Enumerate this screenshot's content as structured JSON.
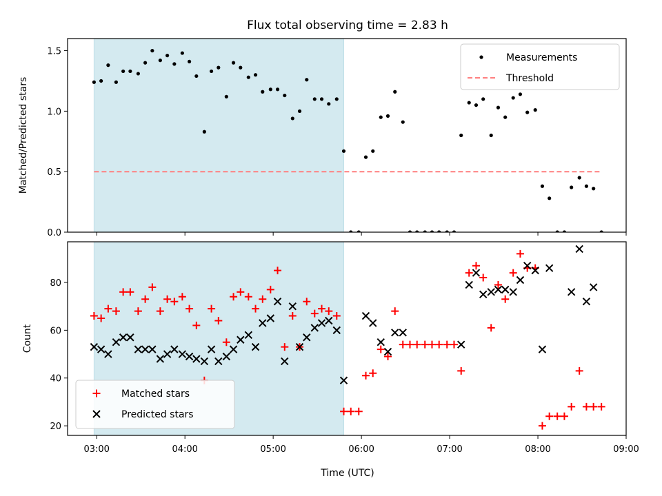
{
  "chart_data": {
    "type": "scatter",
    "title": "Flux total observing time = 2.83 h",
    "xlabel": "Time (UTC)",
    "x_ticks": [
      "03:00",
      "04:00",
      "05:00",
      "06:00",
      "07:00",
      "08:00",
      "09:00"
    ],
    "x_range_hours": [
      2.67,
      9.0
    ],
    "shaded_interval_hours": [
      2.97,
      5.8
    ],
    "shade_color": "#d4eaf0",
    "panels": [
      {
        "ylabel": "Matched/Predicted stars",
        "ylim": [
          0,
          1.6
        ],
        "y_ticks": [
          "0.0",
          "0.5",
          "1.0",
          "1.5"
        ],
        "legend": {
          "placement": "top-right",
          "entries": [
            "Measurements",
            "Threshold"
          ]
        },
        "threshold": {
          "name": "Threshold",
          "value": 0.5,
          "x_range": [
            2.97,
            8.7
          ],
          "color": "#ff7f7f"
        },
        "series": [
          {
            "name": "Measurements",
            "marker": "dot",
            "color": "#000000",
            "points": [
              [
                2.97,
                1.24
              ],
              [
                3.05,
                1.25
              ],
              [
                3.13,
                1.38
              ],
              [
                3.22,
                1.24
              ],
              [
                3.3,
                1.33
              ],
              [
                3.38,
                1.33
              ],
              [
                3.47,
                1.31
              ],
              [
                3.55,
                1.4
              ],
              [
                3.63,
                1.5
              ],
              [
                3.72,
                1.42
              ],
              [
                3.8,
                1.46
              ],
              [
                3.88,
                1.39
              ],
              [
                3.97,
                1.48
              ],
              [
                4.05,
                1.41
              ],
              [
                4.13,
                1.29
              ],
              [
                4.22,
                0.83
              ],
              [
                4.3,
                1.33
              ],
              [
                4.38,
                1.36
              ],
              [
                4.47,
                1.12
              ],
              [
                4.55,
                1.4
              ],
              [
                4.63,
                1.36
              ],
              [
                4.72,
                1.28
              ],
              [
                4.8,
                1.3
              ],
              [
                4.88,
                1.16
              ],
              [
                4.97,
                1.18
              ],
              [
                5.05,
                1.18
              ],
              [
                5.13,
                1.13
              ],
              [
                5.22,
                0.94
              ],
              [
                5.3,
                1.0
              ],
              [
                5.38,
                1.26
              ],
              [
                5.47,
                1.1
              ],
              [
                5.55,
                1.1
              ],
              [
                5.63,
                1.06
              ],
              [
                5.72,
                1.1
              ],
              [
                5.8,
                0.67
              ],
              [
                5.88,
                0.0
              ],
              [
                5.97,
                0.0
              ],
              [
                6.05,
                0.62
              ],
              [
                6.13,
                0.67
              ],
              [
                6.22,
                0.95
              ],
              [
                6.3,
                0.96
              ],
              [
                6.38,
                1.16
              ],
              [
                6.47,
                0.91
              ],
              [
                6.55,
                0.0
              ],
              [
                6.63,
                0.0
              ],
              [
                6.72,
                0.0
              ],
              [
                6.8,
                0.0
              ],
              [
                6.88,
                0.0
              ],
              [
                6.97,
                0.0
              ],
              [
                7.05,
                0.0
              ],
              [
                7.13,
                0.8
              ],
              [
                7.22,
                1.07
              ],
              [
                7.3,
                1.05
              ],
              [
                7.38,
                1.1
              ],
              [
                7.47,
                0.8
              ],
              [
                7.55,
                1.03
              ],
              [
                7.63,
                0.95
              ],
              [
                7.72,
                1.11
              ],
              [
                7.8,
                1.14
              ],
              [
                7.88,
                0.99
              ],
              [
                7.97,
                1.01
              ],
              [
                8.05,
                0.38
              ],
              [
                8.13,
                0.28
              ],
              [
                8.22,
                0.0
              ],
              [
                8.3,
                0.0
              ],
              [
                8.38,
                0.37
              ],
              [
                8.47,
                0.45
              ],
              [
                8.55,
                0.38
              ],
              [
                8.63,
                0.36
              ],
              [
                8.72,
                0.0
              ]
            ]
          }
        ]
      },
      {
        "ylabel": "Count",
        "ylim": [
          16,
          97
        ],
        "y_ticks": [
          "20",
          "40",
          "60",
          "80"
        ],
        "legend": {
          "placement": "bottom-left",
          "entries": [
            "Matched stars",
            "Predicted stars"
          ]
        },
        "series": [
          {
            "name": "Matched stars",
            "marker": "plus",
            "color": "#ff0000",
            "points": [
              [
                2.97,
                66
              ],
              [
                3.05,
                65
              ],
              [
                3.13,
                69
              ],
              [
                3.22,
                68
              ],
              [
                3.3,
                76
              ],
              [
                3.38,
                76
              ],
              [
                3.47,
                68
              ],
              [
                3.55,
                73
              ],
              [
                3.63,
                78
              ],
              [
                3.72,
                68
              ],
              [
                3.8,
                73
              ],
              [
                3.88,
                72
              ],
              [
                3.97,
                74
              ],
              [
                4.05,
                69
              ],
              [
                4.13,
                62
              ],
              [
                4.22,
                39
              ],
              [
                4.3,
                69
              ],
              [
                4.38,
                64
              ],
              [
                4.47,
                55
              ],
              [
                4.55,
                74
              ],
              [
                4.63,
                76
              ],
              [
                4.72,
                74
              ],
              [
                4.8,
                69
              ],
              [
                4.88,
                73
              ],
              [
                4.97,
                77
              ],
              [
                5.05,
                85
              ],
              [
                5.13,
                53
              ],
              [
                5.22,
                66
              ],
              [
                5.3,
                53
              ],
              [
                5.38,
                72
              ],
              [
                5.47,
                67
              ],
              [
                5.55,
                69
              ],
              [
                5.63,
                68
              ],
              [
                5.72,
                66
              ],
              [
                5.8,
                26
              ],
              [
                5.88,
                26
              ],
              [
                5.97,
                26
              ],
              [
                6.05,
                41
              ],
              [
                6.13,
                42
              ],
              [
                6.22,
                52
              ],
              [
                6.3,
                49
              ],
              [
                6.38,
                68
              ],
              [
                6.47,
                54
              ],
              [
                6.55,
                54
              ],
              [
                6.63,
                54
              ],
              [
                6.72,
                54
              ],
              [
                6.8,
                54
              ],
              [
                6.88,
                54
              ],
              [
                6.97,
                54
              ],
              [
                7.05,
                54
              ],
              [
                7.13,
                43
              ],
              [
                7.22,
                84
              ],
              [
                7.3,
                87
              ],
              [
                7.38,
                82
              ],
              [
                7.47,
                61
              ],
              [
                7.55,
                79
              ],
              [
                7.63,
                73
              ],
              [
                7.72,
                84
              ],
              [
                7.8,
                92
              ],
              [
                7.88,
                86
              ],
              [
                7.97,
                86
              ],
              [
                8.05,
                20
              ],
              [
                8.13,
                24
              ],
              [
                8.22,
                24
              ],
              [
                8.3,
                24
              ],
              [
                8.38,
                28
              ],
              [
                8.47,
                43
              ],
              [
                8.55,
                28
              ],
              [
                8.63,
                28
              ],
              [
                8.72,
                28
              ]
            ]
          },
          {
            "name": "Predicted stars",
            "marker": "x",
            "color": "#000000",
            "points": [
              [
                2.97,
                53
              ],
              [
                3.05,
                52
              ],
              [
                3.13,
                50
              ],
              [
                3.22,
                55
              ],
              [
                3.3,
                57
              ],
              [
                3.38,
                57
              ],
              [
                3.47,
                52
              ],
              [
                3.55,
                52
              ],
              [
                3.63,
                52
              ],
              [
                3.72,
                48
              ],
              [
                3.8,
                50
              ],
              [
                3.88,
                52
              ],
              [
                3.97,
                50
              ],
              [
                4.05,
                49
              ],
              [
                4.13,
                48
              ],
              [
                4.22,
                47
              ],
              [
                4.3,
                52
              ],
              [
                4.38,
                47
              ],
              [
                4.47,
                49
              ],
              [
                4.55,
                52
              ],
              [
                4.63,
                56
              ],
              [
                4.72,
                58
              ],
              [
                4.8,
                53
              ],
              [
                4.88,
                63
              ],
              [
                4.97,
                65
              ],
              [
                5.05,
                72
              ],
              [
                5.13,
                47
              ],
              [
                5.22,
                70
              ],
              [
                5.3,
                53
              ],
              [
                5.38,
                57
              ],
              [
                5.47,
                61
              ],
              [
                5.55,
                63
              ],
              [
                5.63,
                64
              ],
              [
                5.72,
                60
              ],
              [
                5.8,
                39
              ],
              [
                6.05,
                66
              ],
              [
                6.13,
                63
              ],
              [
                6.22,
                55
              ],
              [
                6.3,
                51
              ],
              [
                6.38,
                59
              ],
              [
                6.47,
                59
              ],
              [
                7.13,
                54
              ],
              [
                7.22,
                79
              ],
              [
                7.3,
                84
              ],
              [
                7.38,
                75
              ],
              [
                7.47,
                76
              ],
              [
                7.55,
                77
              ],
              [
                7.63,
                77
              ],
              [
                7.72,
                76
              ],
              [
                7.8,
                81
              ],
              [
                7.88,
                87
              ],
              [
                7.97,
                85
              ],
              [
                8.05,
                52
              ],
              [
                8.13,
                86
              ],
              [
                8.38,
                76
              ],
              [
                8.47,
                94
              ],
              [
                8.55,
                72
              ],
              [
                8.63,
                78
              ]
            ]
          }
        ]
      }
    ]
  }
}
